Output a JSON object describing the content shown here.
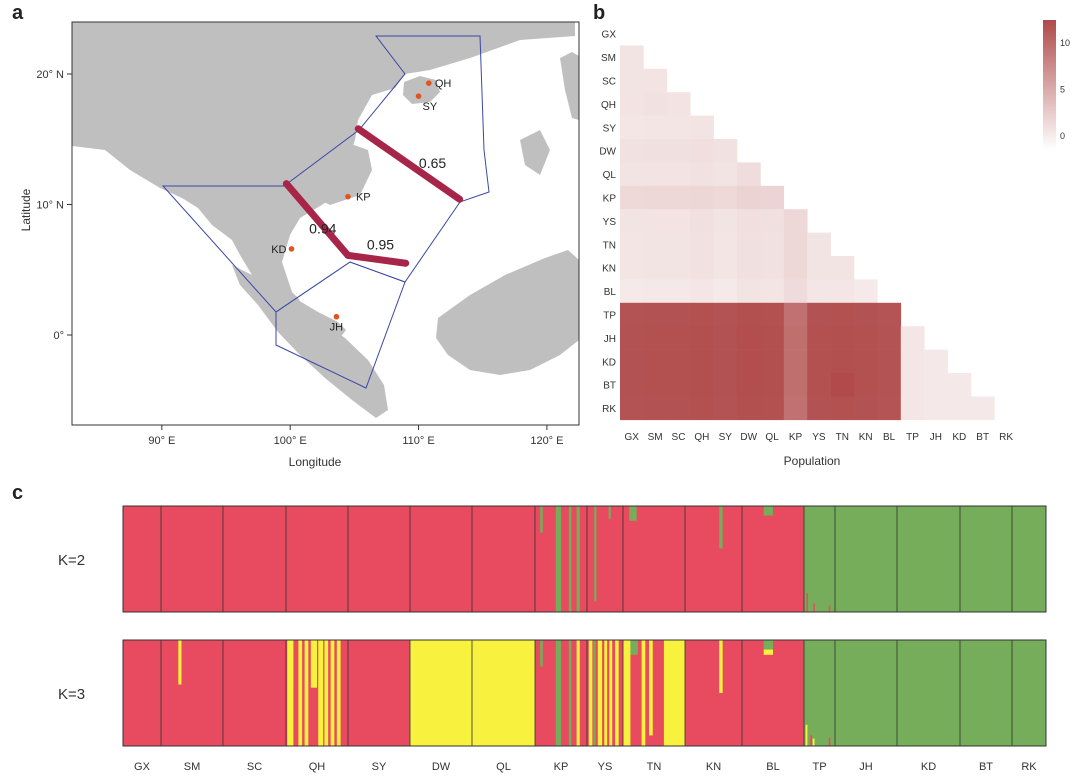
{
  "panels": {
    "a": "a",
    "b": "b",
    "c": "c"
  },
  "map": {
    "xlabel": "Longitude",
    "ylabel": "Latitude",
    "xticks": [
      "90° E",
      "100° E",
      "110° E",
      "120° E"
    ],
    "yticks": [
      "20° N",
      "10° N",
      "0°"
    ],
    "sites": [
      {
        "code": "QH",
        "lon": 110.8,
        "lat": 19.3
      },
      {
        "code": "SY",
        "lon": 110.0,
        "lat": 18.3
      },
      {
        "code": "KP",
        "lon": 104.5,
        "lat": 10.6
      },
      {
        "code": "KD",
        "lon": 100.1,
        "lat": 6.6
      },
      {
        "code": "JH",
        "lon": 103.6,
        "lat": 1.4
      }
    ],
    "barriers": [
      {
        "label": "0.65",
        "path": [
          [
            105.3,
            15.8
          ],
          [
            113.2,
            10.4
          ]
        ]
      },
      {
        "label": "0.94",
        "path": [
          [
            99.7,
            11.6
          ],
          [
            104.5,
            6.1
          ]
        ]
      },
      {
        "label": "0.95",
        "path": [
          [
            104.5,
            6.1
          ],
          [
            109.0,
            5.5
          ]
        ]
      }
    ]
  },
  "chart_data": [
    {
      "type": "heatmap",
      "panel": "b",
      "xlabel": "Population",
      "rows": [
        "GX",
        "SM",
        "SC",
        "QH",
        "SY",
        "DW",
        "QL",
        "KP",
        "YS",
        "TN",
        "KN",
        "BL",
        "TP",
        "JH",
        "KD",
        "BT",
        "RK"
      ],
      "cols": [
        "GX",
        "SM",
        "SC",
        "QH",
        "SY",
        "DW",
        "QL",
        "KP",
        "YS",
        "TN",
        "KN",
        "BL",
        "TP",
        "JH",
        "KD",
        "BT",
        "RK"
      ],
      "colorbar": {
        "ticks": [
          0,
          5,
          10
        ],
        "range": [
          -1.5,
          12.5
        ],
        "low": "#ffffff",
        "high": "#b04a4a"
      },
      "values": [
        [],
        [
          0.6
        ],
        [
          0.6,
          0.7
        ],
        [
          0.7,
          0.8,
          0.7
        ],
        [
          0.4,
          0.5,
          0.5,
          0.6
        ],
        [
          0.8,
          0.9,
          0.9,
          1.0,
          0.8
        ],
        [
          0.6,
          0.7,
          0.7,
          0.8,
          0.6,
          1.2
        ],
        [
          1.5,
          1.6,
          1.6,
          1.7,
          1.5,
          1.9,
          1.8
        ],
        [
          0.6,
          0.7,
          0.7,
          0.9,
          0.6,
          1.0,
          0.9,
          1.6
        ],
        [
          0.5,
          0.6,
          0.6,
          0.8,
          0.5,
          0.9,
          0.8,
          1.6,
          0.6
        ],
        [
          0.5,
          0.6,
          0.6,
          0.8,
          0.5,
          0.9,
          0.8,
          1.6,
          0.6,
          0.6
        ],
        [
          0.2,
          0.3,
          0.3,
          0.4,
          0.2,
          0.6,
          0.5,
          1.3,
          0.4,
          0.4,
          0.2
        ],
        [
          11.8,
          11.9,
          11.9,
          12.0,
          11.8,
          12.1,
          12.0,
          9.5,
          11.9,
          12.0,
          11.9,
          11.7
        ],
        [
          11.9,
          12.0,
          12.0,
          12.1,
          11.9,
          12.2,
          12.1,
          9.6,
          12.0,
          12.1,
          12.0,
          11.8,
          0.4
        ],
        [
          11.9,
          12.0,
          12.0,
          12.1,
          11.9,
          12.2,
          12.1,
          9.6,
          12.0,
          12.1,
          12.0,
          11.8,
          0.4,
          0.3
        ],
        [
          11.9,
          12.0,
          12.0,
          12.1,
          11.9,
          12.2,
          12.1,
          9.6,
          12.0,
          12.4,
          12.0,
          11.8,
          0.4,
          0.3,
          0.3
        ],
        [
          11.8,
          11.9,
          11.9,
          12.0,
          11.8,
          12.1,
          12.0,
          9.5,
          11.9,
          12.0,
          11.9,
          11.7,
          0.4,
          0.3,
          0.3,
          0.3
        ]
      ]
    },
    {
      "type": "bar",
      "panel": "c",
      "stacked": true,
      "populations": [
        "GX",
        "SM",
        "SC",
        "QH",
        "SY",
        "DW",
        "QL",
        "KP",
        "YS",
        "TN",
        "KN",
        "BL",
        "TP",
        "JH",
        "KD",
        "BT",
        "RK"
      ],
      "colors": {
        "red": "#e84a5f",
        "green": "#76ad5b",
        "yellow": "#f8f13e"
      },
      "rows": [
        {
          "label": "K=2",
          "base": [
            "red",
            "red",
            "red",
            "red",
            "red",
            "red",
            "red",
            "red",
            "red",
            "red",
            "red",
            "red",
            "green",
            "green",
            "green",
            "green",
            "green"
          ],
          "features": [
            {
              "pop": "KP",
              "at": 0.1,
              "w": 0.05,
              "color": "green",
              "from": 0.0,
              "to": 0.25
            },
            {
              "pop": "KP",
              "at": 0.4,
              "w": 0.1,
              "color": "green",
              "from": 0.0,
              "to": 1.0
            },
            {
              "pop": "KP",
              "at": 0.65,
              "w": 0.05,
              "color": "green",
              "from": 0.0,
              "to": 1.0
            },
            {
              "pop": "KP",
              "at": 0.8,
              "w": 0.06,
              "color": "green",
              "from": 0.0,
              "to": 1.0
            },
            {
              "pop": "YS",
              "at": 0.2,
              "w": 0.06,
              "color": "green",
              "from": 0.0,
              "to": 0.9
            },
            {
              "pop": "YS",
              "at": 0.6,
              "w": 0.06,
              "color": "green",
              "from": 0.0,
              "to": 0.12
            },
            {
              "pop": "TN",
              "at": 0.1,
              "w": 0.12,
              "color": "green",
              "from": 0.0,
              "to": 0.14
            },
            {
              "pop": "KN",
              "at": 0.6,
              "w": 0.06,
              "color": "green",
              "from": 0.0,
              "to": 0.4
            },
            {
              "pop": "BL",
              "at": 0.35,
              "w": 0.15,
              "color": "green",
              "from": 0.0,
              "to": 0.09
            },
            {
              "pop": "TP",
              "at": 0.08,
              "w": 0.05,
              "color": "red",
              "from": 0.82,
              "to": 1.0
            },
            {
              "pop": "TP",
              "at": 0.3,
              "w": 0.05,
              "color": "red",
              "from": 0.92,
              "to": 1.0
            },
            {
              "pop": "TP",
              "at": 0.8,
              "w": 0.05,
              "color": "red",
              "from": 0.94,
              "to": 1.0
            }
          ]
        },
        {
          "label": "K=3",
          "base": [
            "red",
            "red",
            "red",
            "red",
            "red",
            "yellow",
            "yellow",
            "red",
            "red",
            "red",
            "red",
            "red",
            "green",
            "green",
            "green",
            "green",
            "green"
          ],
          "features": [
            {
              "pop": "SM",
              "at": 0.28,
              "w": 0.05,
              "color": "yellow",
              "from": 0.0,
              "to": 0.42
            },
            {
              "pop": "QH",
              "at": 0.02,
              "w": 0.1,
              "color": "yellow",
              "from": 0.0,
              "to": 1.0
            },
            {
              "pop": "QH",
              "at": 0.12,
              "w": 0.08,
              "color": "red",
              "from": 0.45,
              "to": 1.0
            },
            {
              "pop": "QH",
              "at": 0.2,
              "w": 0.06,
              "color": "yellow",
              "from": 0.0,
              "to": 1.0
            },
            {
              "pop": "QH",
              "at": 0.3,
              "w": 0.06,
              "color": "yellow",
              "from": 0.0,
              "to": 1.0
            },
            {
              "pop": "QH",
              "at": 0.4,
              "w": 0.1,
              "color": "yellow",
              "from": 0.0,
              "to": 0.45
            },
            {
              "pop": "QH",
              "at": 0.52,
              "w": 0.08,
              "color": "yellow",
              "from": 0.0,
              "to": 1.0
            },
            {
              "pop": "QH",
              "at": 0.62,
              "w": 0.06,
              "color": "yellow",
              "from": 0.0,
              "to": 1.0
            },
            {
              "pop": "QH",
              "at": 0.72,
              "w": 0.06,
              "color": "yellow",
              "from": 0.0,
              "to": 1.0
            },
            {
              "pop": "QH",
              "at": 0.82,
              "w": 0.06,
              "color": "yellow",
              "from": 0.0,
              "to": 1.0
            },
            {
              "pop": "KP",
              "at": 0.1,
              "w": 0.05,
              "color": "green",
              "from": 0.0,
              "to": 0.25
            },
            {
              "pop": "KP",
              "at": 0.4,
              "w": 0.1,
              "color": "green",
              "from": 0.0,
              "to": 1.0
            },
            {
              "pop": "KP",
              "at": 0.65,
              "w": 0.05,
              "color": "green",
              "from": 0.0,
              "to": 1.0
            },
            {
              "pop": "KP",
              "at": 0.8,
              "w": 0.06,
              "color": "yellow",
              "from": 0.0,
              "to": 1.0
            },
            {
              "pop": "YS",
              "at": 0.05,
              "w": 0.1,
              "color": "yellow",
              "from": 0.0,
              "to": 1.0
            },
            {
              "pop": "YS",
              "at": 0.18,
              "w": 0.06,
              "color": "green",
              "from": 0.0,
              "to": 1.0
            },
            {
              "pop": "YS",
              "at": 0.3,
              "w": 0.12,
              "color": "yellow",
              "from": 0.0,
              "to": 1.0
            },
            {
              "pop": "YS",
              "at": 0.48,
              "w": 0.08,
              "color": "yellow",
              "from": 0.0,
              "to": 1.0
            },
            {
              "pop": "YS",
              "at": 0.62,
              "w": 0.08,
              "color": "yellow",
              "from": 0.0,
              "to": 1.0
            },
            {
              "pop": "YS",
              "at": 0.78,
              "w": 0.1,
              "color": "yellow",
              "from": 0.0,
              "to": 1.0
            },
            {
              "pop": "TN",
              "at": 0.0,
              "w": 0.12,
              "color": "yellow",
              "from": 0.0,
              "to": 1.0
            },
            {
              "pop": "TN",
              "at": 0.12,
              "w": 0.12,
              "color": "green",
              "from": 0.0,
              "to": 0.14
            },
            {
              "pop": "TN",
              "at": 0.3,
              "w": 0.06,
              "color": "yellow",
              "from": 0.0,
              "to": 1.0
            },
            {
              "pop": "TN",
              "at": 0.42,
              "w": 0.06,
              "color": "yellow",
              "from": 0.0,
              "to": 0.9
            },
            {
              "pop": "TN",
              "at": 0.66,
              "w": 0.34,
              "color": "yellow",
              "from": 0.0,
              "to": 1.0
            },
            {
              "pop": "KN",
              "at": 0.6,
              "w": 0.06,
              "color": "yellow",
              "from": 0.0,
              "to": 0.5
            },
            {
              "pop": "BL",
              "at": 0.35,
              "w": 0.15,
              "color": "green",
              "from": 0.0,
              "to": 0.09
            },
            {
              "pop": "BL",
              "at": 0.35,
              "w": 0.15,
              "color": "yellow",
              "from": 0.09,
              "to": 0.14
            },
            {
              "pop": "TP",
              "at": 0.05,
              "w": 0.06,
              "color": "yellow",
              "from": 0.8,
              "to": 1.0
            },
            {
              "pop": "TP",
              "at": 0.2,
              "w": 0.06,
              "color": "red",
              "from": 0.9,
              "to": 1.0
            },
            {
              "pop": "TP",
              "at": 0.28,
              "w": 0.06,
              "color": "yellow",
              "from": 0.93,
              "to": 1.0
            },
            {
              "pop": "TP",
              "at": 0.8,
              "w": 0.05,
              "color": "red",
              "from": 0.92,
              "to": 1.0
            }
          ]
        }
      ]
    }
  ]
}
